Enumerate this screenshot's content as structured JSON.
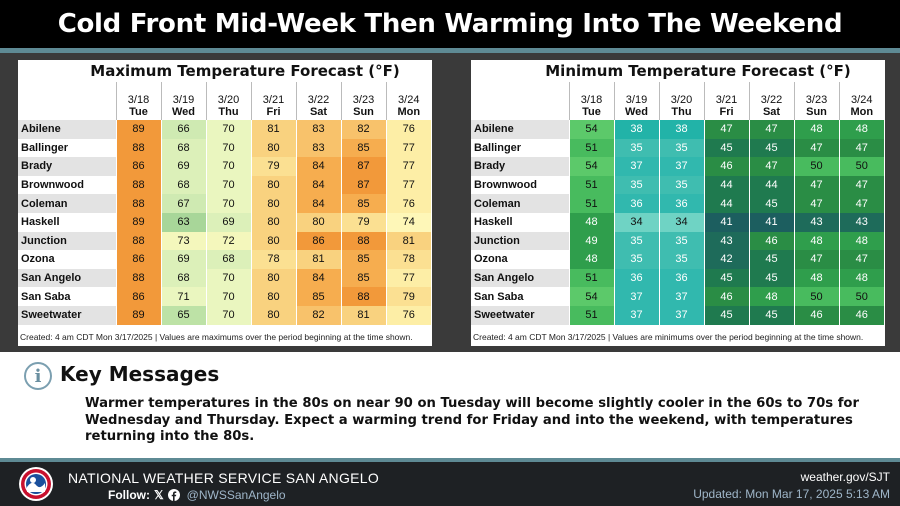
{
  "title": "Cold Front Mid-Week Then Warming Into The Weekend",
  "max_table": {
    "title": "Maximum Temperature Forecast (°F)",
    "note": "Created: 4 am CDT Mon 3/17/2025 | Values are maximums over the period beginning at the time shown.",
    "columns": [
      {
        "date": "3/18",
        "day": "Tue"
      },
      {
        "date": "3/19",
        "day": "Wed"
      },
      {
        "date": "3/20",
        "day": "Thu"
      },
      {
        "date": "3/21",
        "day": "Fri"
      },
      {
        "date": "3/22",
        "day": "Sat"
      },
      {
        "date": "3/23",
        "day": "Sun"
      },
      {
        "date": "3/24",
        "day": "Mon"
      }
    ],
    "rows": [
      {
        "city": "Abilene",
        "values": [
          89,
          66,
          70,
          81,
          83,
          82,
          76
        ]
      },
      {
        "city": "Ballinger",
        "values": [
          88,
          68,
          70,
          80,
          83,
          85,
          77
        ]
      },
      {
        "city": "Brady",
        "values": [
          86,
          69,
          70,
          79,
          84,
          87,
          77
        ]
      },
      {
        "city": "Brownwood",
        "values": [
          88,
          68,
          70,
          80,
          84,
          87,
          77
        ]
      },
      {
        "city": "Coleman",
        "values": [
          88,
          67,
          70,
          80,
          84,
          85,
          76
        ]
      },
      {
        "city": "Haskell",
        "values": [
          89,
          63,
          69,
          80,
          80,
          79,
          74
        ]
      },
      {
        "city": "Junction",
        "values": [
          88,
          73,
          72,
          80,
          86,
          88,
          81
        ]
      },
      {
        "city": "Ozona",
        "values": [
          86,
          69,
          68,
          78,
          81,
          85,
          78
        ]
      },
      {
        "city": "San Angelo",
        "values": [
          88,
          68,
          70,
          80,
          84,
          85,
          77
        ]
      },
      {
        "city": "San Saba",
        "values": [
          86,
          71,
          70,
          80,
          85,
          88,
          79
        ]
      },
      {
        "city": "Sweetwater",
        "values": [
          89,
          65,
          70,
          80,
          82,
          81,
          76
        ]
      }
    ]
  },
  "min_table": {
    "title": "Minimum Temperature Forecast (°F)",
    "note": "Created: 4 am CDT Mon 3/17/2025 | Values are minimums over the period beginning at the time shown.",
    "columns": [
      {
        "date": "3/18",
        "day": "Tue"
      },
      {
        "date": "3/19",
        "day": "Wed"
      },
      {
        "date": "3/20",
        "day": "Thu"
      },
      {
        "date": "3/21",
        "day": "Fri"
      },
      {
        "date": "3/22",
        "day": "Sat"
      },
      {
        "date": "3/23",
        "day": "Sun"
      },
      {
        "date": "3/24",
        "day": "Mon"
      }
    ],
    "rows": [
      {
        "city": "Abilene",
        "values": [
          54,
          38,
          38,
          47,
          47,
          48,
          48
        ]
      },
      {
        "city": "Ballinger",
        "values": [
          51,
          35,
          35,
          45,
          45,
          47,
          47
        ]
      },
      {
        "city": "Brady",
        "values": [
          54,
          37,
          37,
          46,
          47,
          50,
          50
        ]
      },
      {
        "city": "Brownwood",
        "values": [
          51,
          35,
          35,
          44,
          44,
          47,
          47
        ]
      },
      {
        "city": "Coleman",
        "values": [
          51,
          36,
          36,
          44,
          45,
          47,
          47
        ]
      },
      {
        "city": "Haskell",
        "values": [
          48,
          34,
          34,
          41,
          41,
          43,
          43
        ]
      },
      {
        "city": "Junction",
        "values": [
          49,
          35,
          35,
          43,
          46,
          48,
          48
        ]
      },
      {
        "city": "Ozona",
        "values": [
          48,
          35,
          35,
          42,
          45,
          47,
          47
        ]
      },
      {
        "city": "San Angelo",
        "values": [
          51,
          36,
          36,
          45,
          45,
          48,
          48
        ]
      },
      {
        "city": "San Saba",
        "values": [
          54,
          37,
          37,
          46,
          48,
          50,
          50
        ]
      },
      {
        "city": "Sweetwater",
        "values": [
          51,
          37,
          37,
          45,
          45,
          46,
          46
        ]
      }
    ]
  },
  "key_messages": {
    "icon": "info-icon",
    "title": "Key Messages",
    "text": "Warmer temperatures in the 80s on near 90 on Tuesday will become slightly cooler in the 60s to 70s for Wednesday and Thursday. Expect a warming trend for Friday and into the weekend, with temperatures returning into the 80s."
  },
  "footer": {
    "logo_icon": "nws-logo-icon",
    "office": "NATIONAL WEATHER SERVICE SAN ANGELO",
    "follow_label": "Follow:",
    "social_icons": [
      "x-icon",
      "facebook-icon"
    ],
    "handle": "@NWSSanAngelo",
    "website": "weather.gov/SJT",
    "updated": "Updated: Mon Mar 17, 2025 5:13 AM"
  },
  "colors": {
    "accent": "#5e8a94",
    "footer_bg": "#1e2124",
    "title_bg": "#000000"
  }
}
